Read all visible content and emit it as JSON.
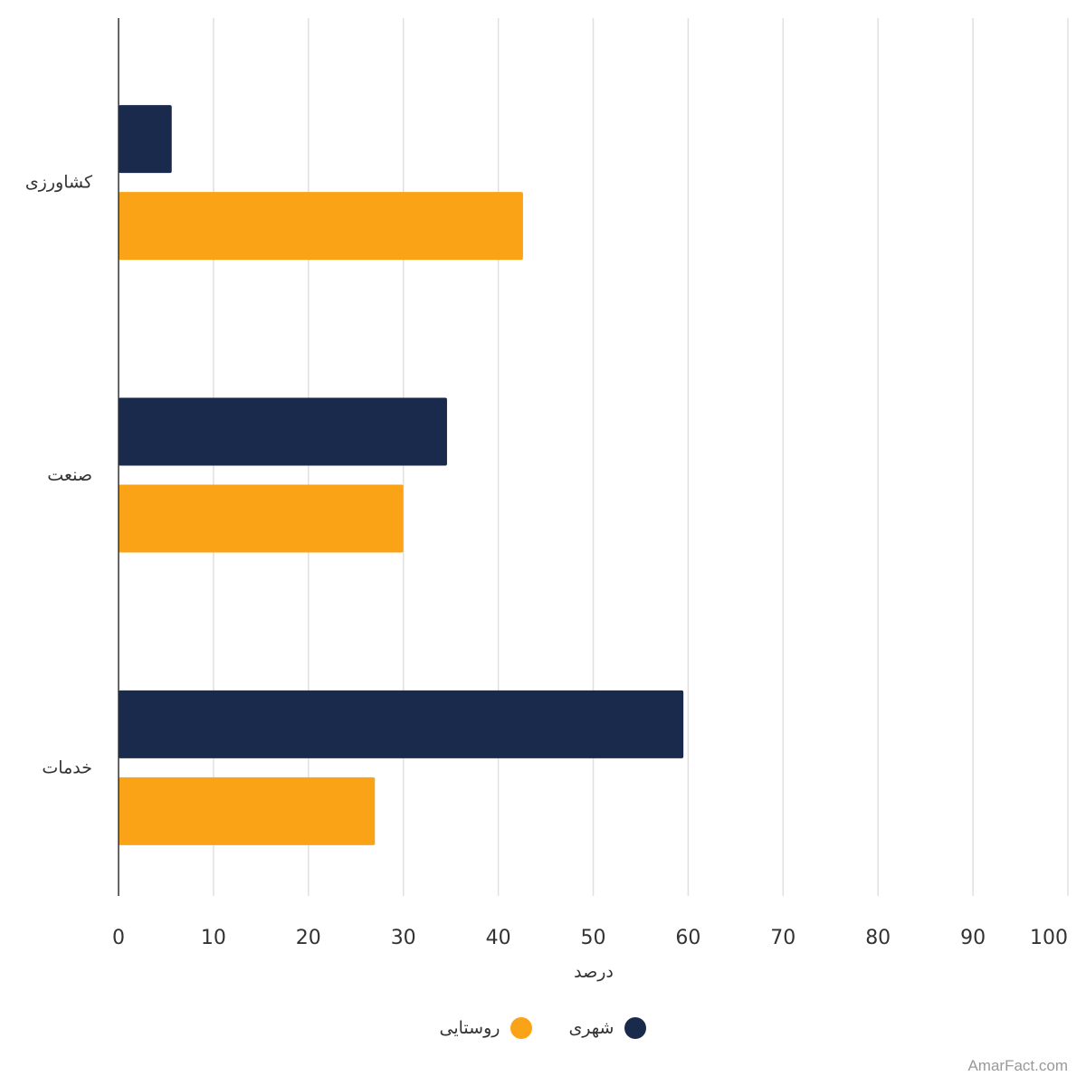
{
  "chart_data": {
    "type": "bar",
    "orientation": "horizontal",
    "categories": [
      "کشاورزی",
      "صنعت",
      "خدمات"
    ],
    "series": [
      {
        "name": "شهری",
        "values": [
          5.6,
          34.6,
          59.5
        ],
        "color": "#1a2a4c"
      },
      {
        "name": "روستایی",
        "values": [
          42.6,
          30.0,
          27.0
        ],
        "color": "#faa316"
      }
    ],
    "xlabel": "درصد",
    "ylabel": "",
    "xlim": [
      0,
      100
    ],
    "xticks": [
      0,
      10,
      20,
      30,
      40,
      50,
      60,
      70,
      80,
      90,
      100
    ],
    "grid": true,
    "legend_position": "bottom"
  },
  "watermark": "AmarFact.com"
}
